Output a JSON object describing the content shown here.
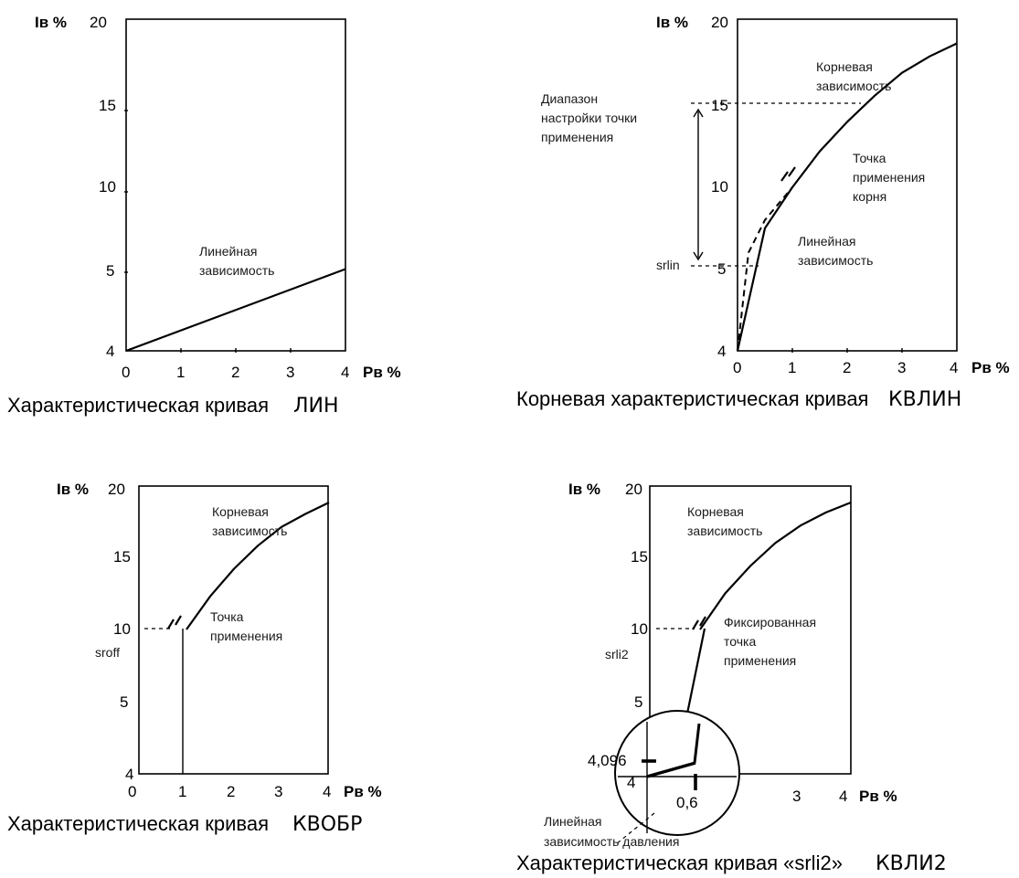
{
  "chart_data": [
    {
      "type": "line",
      "ylabel": "Iв %",
      "xlabel": "Pв %",
      "x_ticks": [
        "0",
        "1",
        "2",
        "3",
        "4"
      ],
      "y_ticks": [
        "4",
        "5",
        "10",
        "15",
        "20"
      ],
      "series": [
        {
          "name": "Линейная зависимость",
          "x": [
            0,
            4
          ],
          "y": [
            4,
            5.0
          ]
        }
      ],
      "annotations": {
        "linear": [
          "Линейная",
          "зависимость"
        ]
      },
      "caption": "Характеристическая кривая",
      "caption_code": "ЛИН"
    },
    {
      "type": "line",
      "ylabel": "Iв %",
      "xlabel": "Pв %",
      "x_ticks": [
        "0",
        "1",
        "2",
        "3",
        "4"
      ],
      "y_ticks": [
        "4",
        "5",
        "10",
        "15",
        "20"
      ],
      "series": [
        {
          "name": "Корневая зависимость",
          "x": [
            0,
            0.5,
            1,
            1.5,
            2,
            2.5,
            3,
            3.5,
            4
          ],
          "y": [
            4,
            7.5,
            10,
            12.2,
            14,
            15.6,
            17.0,
            18.0,
            18.8
          ]
        },
        {
          "name": "Линейная зависимость",
          "x": [
            0,
            0.2,
            0.5,
            0.8,
            1
          ],
          "y": [
            4,
            6,
            8,
            9.2,
            10
          ]
        }
      ],
      "annotations": {
        "root": [
          "Корневая",
          "зависимость"
        ],
        "range": [
          "Диапазон",
          "настройки точки",
          "применения"
        ],
        "point": [
          "Точка",
          "применения",
          "корня"
        ],
        "linear": [
          "Линейная",
          "зависимость"
        ],
        "marker": "srlin"
      },
      "caption": "Корневая характеристическая кривая",
      "caption_code": "КВЛИН"
    },
    {
      "type": "line",
      "ylabel": "Iв %",
      "xlabel": "Pв %",
      "x_ticks": [
        "0",
        "1",
        "2",
        "3",
        "4"
      ],
      "y_ticks": [
        "4",
        "5",
        "10",
        "15",
        "20"
      ],
      "series": [
        {
          "name": "Корневая зависимость",
          "x": [
            1,
            1.5,
            2,
            2.5,
            3,
            3.5,
            4
          ],
          "y": [
            10,
            12.3,
            14.2,
            15.8,
            17.1,
            18.0,
            18.8
          ]
        }
      ],
      "annotations": {
        "root": [
          "Корневая",
          "зависимость"
        ],
        "point": [
          "Точка",
          "применения"
        ],
        "marker": "sroff"
      },
      "caption": "Характеристическая кривая",
      "caption_code": "КВОБР"
    },
    {
      "type": "line",
      "ylabel": "Iв %",
      "xlabel": "Pв %",
      "x_ticks": [
        "3",
        "4"
      ],
      "y_ticks": [
        "4",
        "5",
        "10",
        "15",
        "20"
      ],
      "series": [
        {
          "name": "Корневая зависимость",
          "x": [
            1,
            1.5,
            2,
            2.5,
            3,
            3.5,
            4
          ],
          "y": [
            10,
            12.5,
            14.4,
            16.0,
            17.2,
            18.1,
            18.8
          ]
        },
        {
          "name": "Линейная зависимость давления",
          "x": [
            0,
            0.6
          ],
          "y": [
            4,
            4.096
          ]
        }
      ],
      "annotations": {
        "root": [
          "Корневая",
          "зависимость"
        ],
        "point": [
          "Фиксированная",
          "точка",
          "применения"
        ],
        "pressure": [
          "Линейная",
          "зависимость давления"
        ],
        "marker": "srli2",
        "zoom_y": "4,096",
        "zoom_y0": "4",
        "zoom_x": "0,6"
      },
      "caption": "Характеристическая кривая «srli2»",
      "caption_code": "КВЛИ2"
    }
  ]
}
